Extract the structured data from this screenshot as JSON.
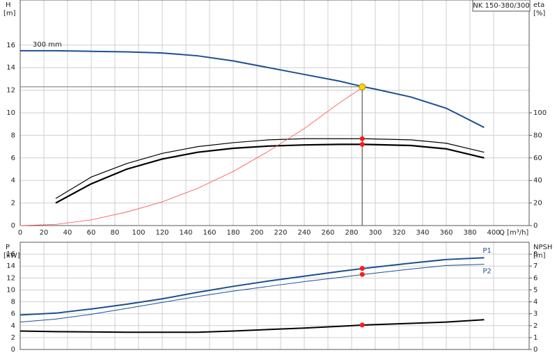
{
  "chart_data": [
    {
      "type": "line",
      "title": "NK 150-380/300",
      "y_label": "H",
      "y_unit": "[m]",
      "y2_label": "eta",
      "y2_unit": "[%]",
      "x_label": "Q [m³/h]",
      "xlim": [
        0,
        430
      ],
      "xticks": [
        0,
        20,
        40,
        60,
        80,
        100,
        120,
        140,
        160,
        180,
        200,
        220,
        240,
        260,
        280,
        300,
        320,
        340,
        360,
        380,
        400
      ],
      "ylim": [
        0,
        20
      ],
      "yticks": [
        0,
        2,
        4,
        6,
        8,
        10,
        12,
        14,
        16
      ],
      "y2lim": [
        0,
        200
      ],
      "y2ticks": [
        0,
        20,
        40,
        60,
        80,
        100
      ],
      "grid": true,
      "series": [
        {
          "name": "300 mm",
          "color": "#1c4f8f",
          "width": 2,
          "x": [
            0,
            30,
            60,
            90,
            120,
            150,
            180,
            210,
            240,
            270,
            290,
            300,
            330,
            360,
            392
          ],
          "values": [
            15.5,
            15.5,
            15.45,
            15.4,
            15.3,
            15.05,
            14.6,
            14.0,
            13.4,
            12.8,
            12.3,
            12.1,
            11.4,
            10.4,
            8.7
          ]
        },
        {
          "color": "#000000",
          "width": 1.2,
          "axis": "y2",
          "x": [
            30,
            60,
            90,
            120,
            150,
            180,
            210,
            240,
            270,
            290,
            330,
            360,
            392
          ],
          "values": [
            24,
            43,
            55,
            64,
            70,
            73.5,
            76,
            77,
            77,
            77,
            76,
            73,
            65
          ]
        },
        {
          "color": "#000000",
          "width": 2.2,
          "axis": "y2",
          "x": [
            30,
            60,
            90,
            120,
            150,
            180,
            210,
            240,
            270,
            290,
            330,
            360,
            392
          ],
          "values": [
            20,
            37,
            50,
            59,
            65,
            68.5,
            70.5,
            71.5,
            72,
            72,
            71,
            68,
            60
          ]
        },
        {
          "color": "#ff4a4a",
          "width": 0.8,
          "x": [
            0,
            30,
            60,
            90,
            120,
            150,
            180,
            210,
            240,
            270,
            290
          ],
          "values": [
            0,
            0.1,
            0.5,
            1.2,
            2.1,
            3.3,
            4.8,
            6.6,
            8.6,
            10.9,
            12.3
          ]
        }
      ],
      "operating_point": {
        "q": 289,
        "h": 12.3,
        "eta": [
          77,
          72
        ]
      }
    },
    {
      "type": "line",
      "y_label": "P",
      "y_unit": "[kW]",
      "y2_label": "NPSH",
      "y2_unit": "[m]",
      "xlim": [
        0,
        430
      ],
      "ylim": [
        0,
        18
      ],
      "yticks": [
        0,
        2,
        4,
        6,
        8,
        10,
        12,
        14,
        16
      ],
      "y2lim": [
        0,
        9
      ],
      "y2ticks": [
        0,
        1,
        2,
        3,
        4,
        5,
        6,
        7,
        8
      ],
      "grid": true,
      "series": [
        {
          "name": "P1",
          "color": "#1c4f8f",
          "width": 2,
          "x": [
            0,
            30,
            60,
            90,
            120,
            150,
            180,
            210,
            240,
            270,
            290,
            330,
            360,
            392
          ],
          "values": [
            5.8,
            6.1,
            6.8,
            7.6,
            8.5,
            9.6,
            10.6,
            11.5,
            12.3,
            13.1,
            13.6,
            14.5,
            15.1,
            15.4
          ]
        },
        {
          "name": "P2",
          "color": "#1c4f8f",
          "width": 1,
          "x": [
            0,
            30,
            60,
            90,
            120,
            150,
            180,
            210,
            240,
            270,
            290,
            330,
            360,
            392
          ],
          "values": [
            4.6,
            5.1,
            5.9,
            6.9,
            7.9,
            8.9,
            9.8,
            10.6,
            11.4,
            12.1,
            12.6,
            13.5,
            14.1,
            14.3
          ]
        },
        {
          "color": "#000000",
          "width": 2,
          "axis": "y2",
          "x": [
            0,
            30,
            90,
            150,
            180,
            240,
            290,
            360,
            392
          ],
          "values": [
            1.55,
            1.5,
            1.45,
            1.45,
            1.55,
            1.8,
            2.05,
            2.3,
            2.5
          ]
        }
      ],
      "operating_point": {
        "q": 289,
        "p": [
          13.6,
          12.6
        ],
        "npsh": 2.05
      }
    }
  ]
}
